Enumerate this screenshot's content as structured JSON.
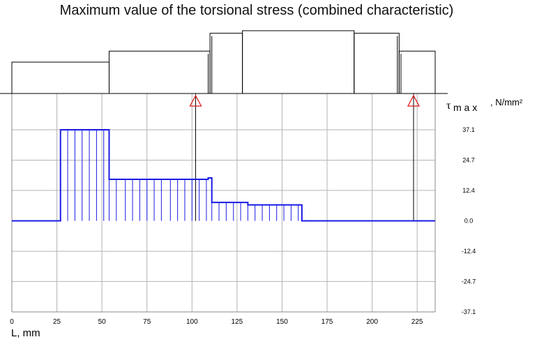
{
  "chart_data": {
    "type": "line",
    "title": "Maximum value of the torsional stress (combined characteristic)",
    "xlabel": "L, mm",
    "ylabel": {
      "main": "τ",
      "sub": "m a x",
      "units": ", N/mm²"
    },
    "xlim": [
      0,
      235
    ],
    "x_ticks": [
      0,
      25,
      50,
      75,
      100,
      125,
      150,
      175,
      200,
      225
    ],
    "x_tick_labels": [
      "0",
      "25",
      "50",
      "75",
      "100",
      "125",
      "150",
      "175",
      "200",
      "225"
    ],
    "ylim": [
      -37.1,
      37.1
    ],
    "y_ticks": [
      37.1,
      24.7,
      12.4,
      0.0,
      -12.4,
      -24.7,
      -37.1
    ],
    "y_tick_labels": [
      "37.1",
      "24.7",
      "12.4",
      "0.0",
      "-12.4",
      "-24.7",
      "-37.1"
    ],
    "grid": true,
    "series": [
      {
        "color": "#1a1ae6",
        "step_x": [
          0,
          27,
          27,
          54,
          54,
          109,
          109,
          111,
          111,
          131,
          131,
          161,
          161,
          235
        ],
        "step_y": [
          0,
          0,
          37.1,
          37.1,
          16.9,
          16.9,
          17.5,
          17.5,
          7.5,
          7.5,
          6.5,
          6.5,
          0,
          0
        ],
        "hatch_x": [
          27,
          31,
          35,
          39,
          43,
          47,
          51,
          54,
          58,
          63,
          67,
          71,
          75,
          79,
          83,
          88,
          92,
          96,
          100,
          104,
          108,
          111,
          115,
          119,
          123,
          127,
          131,
          135,
          139,
          143,
          147,
          151,
          155,
          159
        ]
      }
    ],
    "supports": [
      102,
      223
    ],
    "shaft_profile": {
      "segments": [
        {
          "x0": 0,
          "x1": 54,
          "d": 1.0
        },
        {
          "x0": 54,
          "x1": 110,
          "d": 1.35
        },
        {
          "x0": 110,
          "x1": 128,
          "d": 1.92
        },
        {
          "x0": 128,
          "x1": 190,
          "d": 2.0
        },
        {
          "x0": 190,
          "x1": 215,
          "d": 1.92
        },
        {
          "x0": 215,
          "x1": 235,
          "d": 1.35
        }
      ],
      "fine_lines": [
        109,
        111,
        214,
        216
      ]
    },
    "colors": {
      "axis": "#000000",
      "grid": "#b3b3b3",
      "series": "#1a1ae6",
      "support": "#e02020"
    }
  }
}
